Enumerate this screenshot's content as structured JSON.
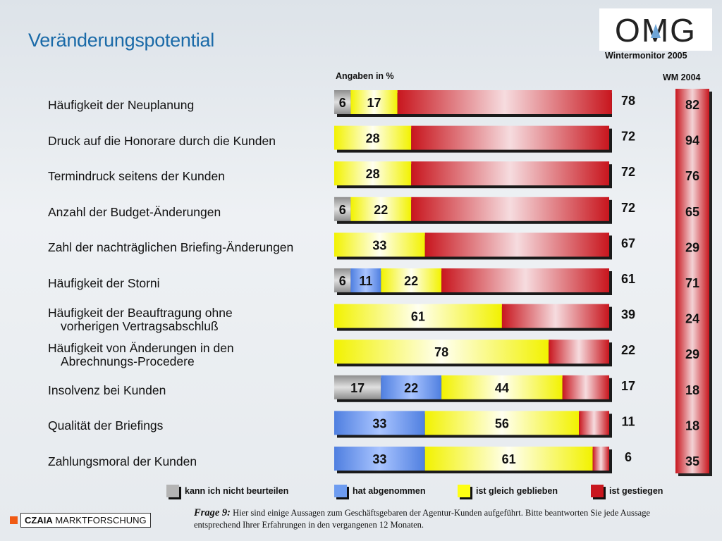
{
  "header": {
    "title": "Veränderungspotential",
    "logo_text": "OMG",
    "subtitle": "Wintermonitor 2005",
    "unit_note": "Angaben in %",
    "wm_label": "WM 2004"
  },
  "colors": {
    "grey": "#b4b4b4",
    "blue": "#6e9cf0",
    "yellow": "#ffff14",
    "red": "#c8161e",
    "title_blue": "#1a6aa8",
    "accent_orange": "#f05a14"
  },
  "chart_data": {
    "type": "bar",
    "orientation": "horizontal",
    "stacked": true,
    "unit": "%",
    "categories": [
      [
        "Häufigkeit der Neuplanung"
      ],
      [
        "Druck auf die Honorare durch die Kunden"
      ],
      [
        "Termindruck seitens der Kunden"
      ],
      [
        "Anzahl der Budget-Änderungen"
      ],
      [
        "Zahl der nachträglichen Briefing-Änderungen"
      ],
      [
        "Häufigkeit der Storni"
      ],
      [
        "Häufigkeit der Beauftragung ohne",
        "vorherigen Vertragsabschluß"
      ],
      [
        "Häufigkeit von Änderungen in den",
        "Abrechnungs-Procedere"
      ],
      [
        "Insolvenz bei Kunden"
      ],
      [
        "Qualität der Briefings"
      ],
      [
        "Zahlungsmoral der Kunden"
      ]
    ],
    "series": [
      {
        "name": "kann ich nicht beurteilen",
        "color": "grey",
        "values": [
          6,
          0,
          0,
          6,
          0,
          6,
          0,
          0,
          17,
          0,
          0
        ]
      },
      {
        "name": "hat abgenommen",
        "color": "blue",
        "values": [
          0,
          0,
          0,
          0,
          0,
          11,
          0,
          0,
          22,
          33,
          33
        ]
      },
      {
        "name": "ist gleich geblieben",
        "color": "yellow",
        "values": [
          17,
          28,
          28,
          22,
          33,
          22,
          61,
          78,
          44,
          56,
          61
        ]
      },
      {
        "name": "ist gestiegen",
        "color": "red",
        "values": [
          78,
          72,
          72,
          72,
          67,
          61,
          39,
          22,
          17,
          11,
          6
        ]
      }
    ],
    "wm2004_values": [
      82,
      94,
      76,
      65,
      29,
      71,
      24,
      29,
      18,
      18,
      35
    ]
  },
  "legend": [
    {
      "label": "kann ich nicht beurteilen",
      "color": "grey"
    },
    {
      "label": "hat abgenommen",
      "color": "blue"
    },
    {
      "label": "ist gleich geblieben",
      "color": "yellow"
    },
    {
      "label": "ist gestiegen",
      "color": "red"
    }
  ],
  "footnote": {
    "question": "Frage 9:",
    "text": "Hier sind einige Aussagen zum Geschäftsgebaren der Agentur-Kunden aufgeführt. Bitte beantworten Sie jede Aussage entsprechend Ihrer Erfahrungen in den vergangenen 12 Monaten."
  },
  "company": {
    "name_bold": "CZAIA",
    "name_rest": "MARKTFORSCHUNG"
  }
}
